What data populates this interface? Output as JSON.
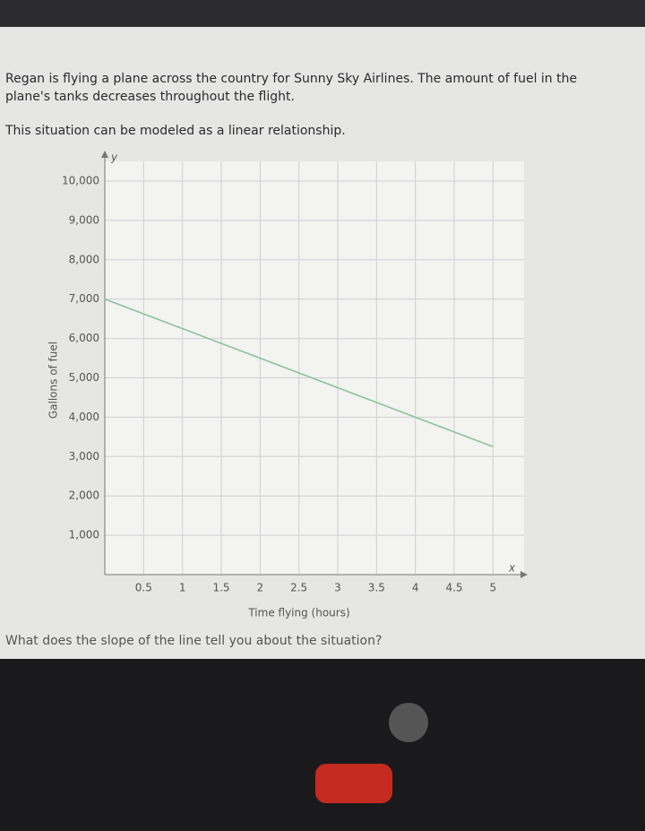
{
  "problem": [
    "Regan is flying a plane across the country for Sunny Sky Airlines. The amount of fuel in the",
    "plane's tanks decreases throughout the flight.",
    "This situation can be modeled as a linear relationship."
  ],
  "question": "What does the slope of the line tell you about the situation?",
  "chart_data": {
    "type": "line",
    "x_label": "Time flying (hours)",
    "y_label": "Gallons of fuel",
    "x_axis_name": "x",
    "y_axis_name": "y",
    "x": [
      0,
      5
    ],
    "values": [
      7000,
      3250
    ],
    "color": "#8cc49c",
    "xlim": [
      0,
      5.4
    ],
    "ylim": [
      0,
      10500
    ],
    "xticks": [
      0.5,
      1,
      1.5,
      2,
      2.5,
      3,
      3.5,
      4,
      4.5,
      5
    ],
    "yticks": [
      {
        "value": 1000,
        "label": "1,000"
      },
      {
        "value": 2000,
        "label": "2,000"
      },
      {
        "value": 3000,
        "label": "3,000"
      },
      {
        "value": 4000,
        "label": "4,000"
      },
      {
        "value": 5000,
        "label": "5,000"
      },
      {
        "value": 6000,
        "label": "6,000"
      },
      {
        "value": 7000,
        "label": "7,000"
      },
      {
        "value": 8000,
        "label": "8,000"
      },
      {
        "value": 9000,
        "label": "9,000"
      },
      {
        "value": 10000,
        "label": "10,000"
      }
    ],
    "grid": true
  }
}
